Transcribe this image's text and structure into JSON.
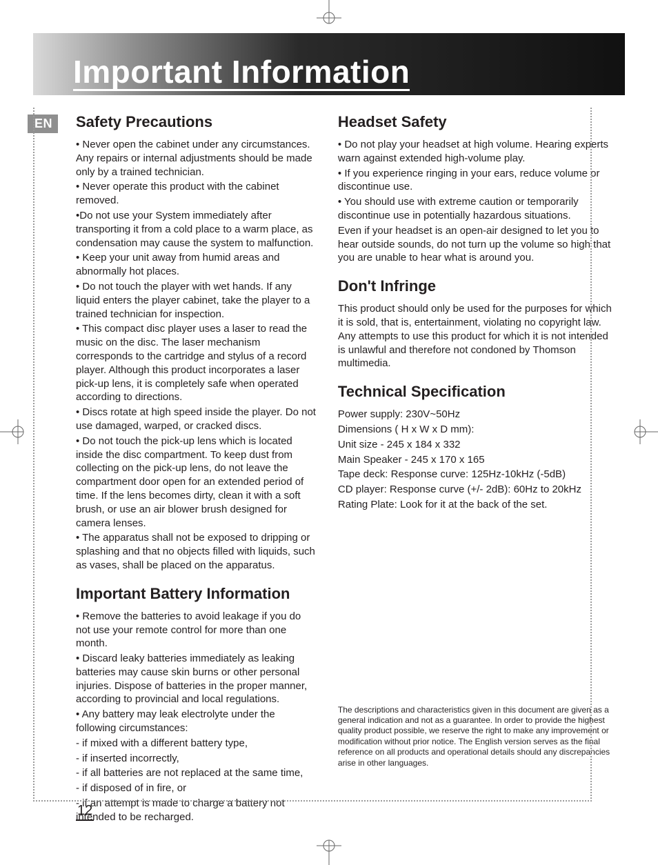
{
  "page_number": "12",
  "lang_tab": "EN",
  "header": {
    "title": "Important Information"
  },
  "left": {
    "safety": {
      "heading": "Safety Precautions",
      "items": [
        "• Never open the cabinet under any circumstances. Any repairs or internal adjustments should be made only by a trained technician.",
        "• Never operate this product with the cabinet removed.",
        "•Do not use your System immediately after transporting it from a cold place to a warm place, as condensation may cause the system to malfunction.",
        "• Keep your unit away from humid areas and abnormally hot places.",
        "• Do not touch the player with wet hands.  If any liquid enters the player cabinet, take the player to a trained technician for inspection.",
        "• This compact disc player uses a laser to read the music on the disc.  The laser mechanism corresponds to the cartridge and stylus of a record player. Although this product incorporates a laser pick-up lens, it is completely safe when operated according to directions.",
        "• Discs rotate at high speed inside the player.  Do not use damaged, warped, or cracked discs.",
        "• Do not touch the pick-up lens which is located inside the disc compartment. To keep dust from collecting on the pick-up lens, do not leave the compartment door open for an extended period of time.  If the lens becomes dirty, clean it with a soft brush, or use an air blower brush designed for camera lenses.",
        "•  The apparatus shall not be exposed to dripping or splashing and that no objects filled with liquids, such as vases, shall be placed on the apparatus."
      ]
    },
    "battery": {
      "heading": "Important Battery Information",
      "items": [
        "• Remove the batteries to avoid leakage if you do not use your remote control for more than one month.",
        "• Discard leaky batteries immediately as leaking batteries may cause skin burns or other personal injuries. Dispose of batteries in the proper manner, according to provincial and local regulations.",
        "• Any battery may leak electrolyte under the following circumstances:",
        "- if mixed with a different battery type,",
        "- if inserted incorrectly,",
        "- if all batteries are not replaced at the same time,",
        "- if disposed of in fire, or",
        "- if an attempt is made to charge a battery not intended to be recharged."
      ]
    }
  },
  "right": {
    "headset": {
      "heading": "Headset Safety",
      "items": [
        "• Do not play your headset at  high volume. Hearing experts warn against extended high-volume play.",
        "• If you experience ringing in your ears, reduce volume or discontinue use.",
        "• You should use with extreme caution or temporarily discontinue use in potentially  hazardous situations.",
        "Even if your headset is an open-air designed to let you to hear outside sounds, do not turn up the  volume so high that you are unable to hear what is around you."
      ]
    },
    "infringe": {
      "heading": "Don't Infringe",
      "body": "This product should only be used for the purposes for which it is sold, that is, entertainment, violating no copyright law. Any attempts to use this product for which it is not intended is unlawful and therefore not condoned by Thomson multimedia."
    },
    "techspec": {
      "heading": "Technical Specification",
      "lines": [
        "Power supply: 230V~50Hz",
        "Dimensions ( H x W x D mm):",
        "Unit size - 245  x 184 x 332",
        "Main Speaker  - 245 x 170 x 165",
        "Tape deck: Response curve: 125Hz-10kHz (-5dB)",
        "CD player: Response curve (+/- 2dB): 60Hz to 20kHz",
        "Rating Plate: Look for it at the back of the set."
      ]
    },
    "footnote": "The descriptions and characteristics given in this document are given as a general indication and not as a guarantee.  In order to provide the highest quality product possible, we reserve the right to make any improvement or modification without prior notice.  The English version serves as the final reference  on all products and operational details should any discrepancies arise in other languages."
  },
  "colors": {
    "text": "#231f20",
    "tab_bg": "#8f8f8f",
    "header_gradient_from": "#d9d9d9",
    "header_gradient_to": "#111111",
    "dotted": "#9a9a9a"
  }
}
